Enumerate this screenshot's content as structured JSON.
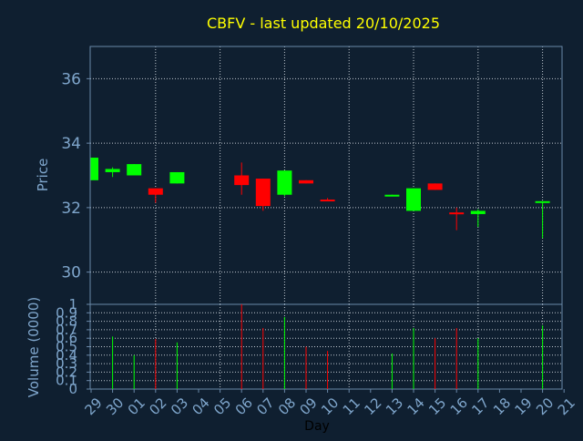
{
  "chart_data": {
    "type": "candlestick",
    "title": "CBFV - last updated 20/10/2025",
    "x_label": "Day",
    "price_axis": {
      "label": "Price",
      "ylim": [
        29.0,
        37.0
      ],
      "ticks": [
        "30",
        "32",
        "34",
        "36"
      ]
    },
    "volume_axis": {
      "label": "Volume (0000)",
      "ylim": [
        0,
        1
      ],
      "ticks": [
        "0",
        "0.1",
        "0.2",
        "0.3",
        "0.4",
        "0.5",
        "0.6",
        "0.7",
        "0.8",
        "0.9",
        "1"
      ]
    },
    "x_ticks": [
      "29",
      "30",
      "01",
      "02",
      "03",
      "04",
      "05",
      "06",
      "07",
      "08",
      "09",
      "10",
      "11",
      "12",
      "13",
      "14",
      "15",
      "16",
      "17",
      "18",
      "19",
      "20",
      "21"
    ],
    "grid": true,
    "colors": {
      "up": "#00ff00",
      "down": "#ff0000",
      "title": "#ffff00",
      "axis_text": "#7fa6cc",
      "grid": "#c0c8d0",
      "frame": "#6a88a8"
    },
    "candles": [
      {
        "day": "29",
        "open": 32.85,
        "close": 33.55,
        "high": 33.55,
        "low": 32.85,
        "volume": null
      },
      {
        "day": "30",
        "open": 33.1,
        "close": 33.2,
        "high": 33.25,
        "low": 32.95,
        "volume": 0.62
      },
      {
        "day": "01",
        "open": 33.0,
        "close": 33.35,
        "high": 33.35,
        "low": 33.0,
        "volume": 0.4
      },
      {
        "day": "02",
        "open": 32.6,
        "close": 32.4,
        "high": 32.6,
        "low": 32.15,
        "volume": 0.59
      },
      {
        "day": "03",
        "open": 32.75,
        "close": 33.1,
        "high": 33.1,
        "low": 32.75,
        "volume": 0.55
      },
      {
        "day": "06",
        "open": 33.0,
        "close": 32.7,
        "high": 33.4,
        "low": 32.4,
        "volume": 1.0
      },
      {
        "day": "07",
        "open": 32.9,
        "close": 32.05,
        "high": 32.9,
        "low": 31.9,
        "volume": 0.72
      },
      {
        "day": "08",
        "open": 32.4,
        "close": 33.15,
        "high": 33.15,
        "low": 32.35,
        "volume": 0.85
      },
      {
        "day": "09",
        "open": 32.85,
        "close": 32.75,
        "high": 32.85,
        "low": 32.75,
        "volume": 0.5
      },
      {
        "day": "10",
        "open": 32.25,
        "close": 32.2,
        "high": 32.3,
        "low": 32.2,
        "volume": 0.45
      },
      {
        "day": "13",
        "open": 32.35,
        "close": 32.4,
        "high": 32.4,
        "low": 32.35,
        "volume": 0.42
      },
      {
        "day": "14",
        "open": 31.9,
        "close": 32.6,
        "high": 32.6,
        "low": 31.9,
        "volume": 0.72
      },
      {
        "day": "15",
        "open": 32.75,
        "close": 32.55,
        "high": 32.75,
        "low": 32.55,
        "volume": 0.6
      },
      {
        "day": "16",
        "open": 31.85,
        "close": 31.8,
        "high": 32.0,
        "low": 31.3,
        "volume": 0.72
      },
      {
        "day": "17",
        "open": 31.8,
        "close": 31.9,
        "high": 31.95,
        "low": 31.4,
        "volume": 0.6
      },
      {
        "day": "20",
        "open": 32.2,
        "close": 32.2,
        "high": 32.2,
        "low": 31.05,
        "volume": 0.75
      }
    ]
  }
}
